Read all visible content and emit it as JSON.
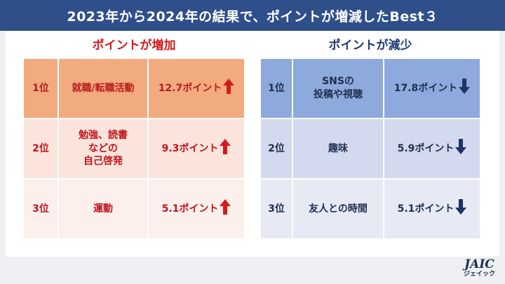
{
  "header": {
    "title": "2023年から2024年の結果で、ポイントが増減したBest３"
  },
  "increase": {
    "title": "ポイントが増加",
    "arrow_color": "#d41c1c",
    "rows": [
      {
        "rank": "1位",
        "item": "就職/転職活動",
        "value": "12.7ポイント"
      },
      {
        "rank": "2位",
        "item": "勉強、読書\nなどの\n自己啓発",
        "value": "9.3ポイント"
      },
      {
        "rank": "3位",
        "item": "運動",
        "value": "5.1ポイント"
      }
    ]
  },
  "decrease": {
    "title": "ポイントが減少",
    "arrow_color": "#1c3566",
    "rows": [
      {
        "rank": "1位",
        "item": "SNSの\n投稿や視聴",
        "value": "17.8ポイント"
      },
      {
        "rank": "2位",
        "item": "趣味",
        "value": "5.9ポイント"
      },
      {
        "rank": "3位",
        "item": "友人との時間",
        "value": "5.1ポイント"
      }
    ]
  },
  "logo": {
    "main": "JAIC",
    "sub": "ジェイック"
  }
}
